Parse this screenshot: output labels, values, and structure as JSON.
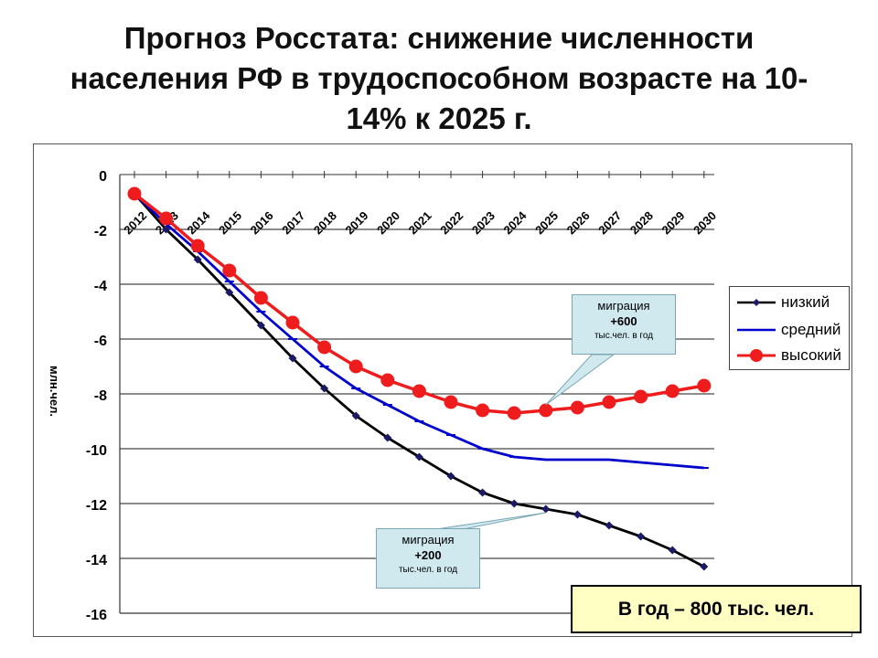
{
  "slide": {
    "title_lines": [
      "Прогноз Росстата: снижение численности",
      "населения РФ в трудоспособном возрасте на 10-",
      "14% к 2025 г."
    ],
    "result_box": "В год – 800 тыс. чел."
  },
  "chart_data": {
    "type": "line",
    "title": "",
    "xlabel": "",
    "ylabel": "млн.чел.",
    "ylim": [
      -16,
      0
    ],
    "yticks": [
      "0",
      "-2",
      "-4",
      "-6",
      "-8",
      "-10",
      "-12",
      "-14",
      "-16"
    ],
    "grid": true,
    "legend_position": "right",
    "categories": [
      "2012",
      "2013",
      "2014",
      "2015",
      "2016",
      "2017",
      "2018",
      "2019",
      "2020",
      "2021",
      "2022",
      "2023",
      "2024",
      "2025",
      "2026",
      "2027",
      "2028",
      "2029",
      "2030"
    ],
    "x_tick_labels": [
      "2012",
      "2013",
      "2014",
      "2015",
      "2016",
      "2017",
      "2018",
      "2019",
      "2020",
      "2021",
      "2022",
      "2023",
      "2024",
      "2025",
      "2026",
      "2027",
      "2028",
      "2029",
      "2030"
    ],
    "series": [
      {
        "name": "низкий",
        "color": "#000000",
        "marker": "diamond",
        "values": [
          -0.7,
          -2.0,
          -3.1,
          -4.3,
          -5.5,
          -6.7,
          -7.8,
          -8.8,
          -9.6,
          -10.3,
          -11.0,
          -11.6,
          -12.0,
          -12.2,
          -12.4,
          -12.8,
          -13.2,
          -13.7,
          -14.3
        ]
      },
      {
        "name": "средний",
        "color": "#0000cc",
        "marker": "dash",
        "values": [
          -0.7,
          -1.8,
          -2.8,
          -3.9,
          -5.0,
          -6.0,
          -7.0,
          -7.8,
          -8.4,
          -9.0,
          -9.5,
          -10.0,
          -10.3,
          -10.4,
          -10.4,
          -10.4,
          -10.5,
          -10.6,
          -10.7
        ]
      },
      {
        "name": "высокий",
        "color": "#ee1c1c",
        "marker": "circle",
        "values": [
          -0.7,
          -1.6,
          -2.6,
          -3.5,
          -4.5,
          -5.4,
          -6.3,
          -7.0,
          -7.5,
          -7.9,
          -8.3,
          -8.6,
          -8.7,
          -8.6,
          -8.5,
          -8.3,
          -8.1,
          -7.9,
          -7.7
        ]
      }
    ],
    "annotations": [
      {
        "head": "миграция",
        "value": "+600",
        "unit": "тыс.чел. в год"
      },
      {
        "head": "миграция",
        "value": "+200",
        "unit": "тыс.чел. в год"
      }
    ]
  }
}
